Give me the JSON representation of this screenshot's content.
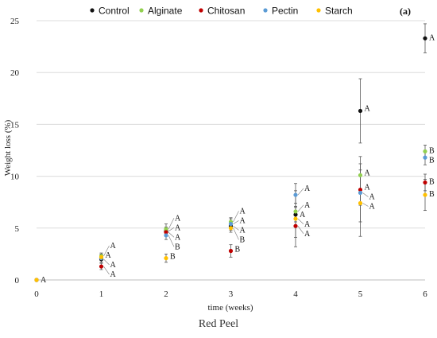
{
  "caption": "Red Peel",
  "chart_data": {
    "type": "scatter",
    "panel_label": "(a)",
    "xlabel": "time (weeks)",
    "ylabel": "Weight loss (%)",
    "xlim": [
      0,
      6
    ],
    "ylim": [
      0,
      25
    ],
    "x_ticks": [
      0,
      1,
      2,
      3,
      4,
      5,
      6
    ],
    "y_ticks": [
      0,
      5,
      10,
      15,
      20,
      25
    ],
    "grid": "horizontal",
    "legend_position": "top",
    "series": [
      {
        "name": "Control",
        "color": "#111111",
        "points": [
          {
            "x": 0,
            "y": 0,
            "err": 0,
            "label": "A"
          },
          {
            "x": 1,
            "y": 2.0,
            "err": 0.3,
            "label": "A"
          },
          {
            "x": 2,
            "y": 4.7,
            "err": 0.4,
            "label": "A"
          },
          {
            "x": 3,
            "y": 5.2,
            "err": 0.4,
            "label": "A"
          },
          {
            "x": 4,
            "y": 6.3,
            "err": 0.7,
            "label": "A"
          },
          {
            "x": 5,
            "y": 16.3,
            "err": 3.1,
            "label": "A"
          },
          {
            "x": 6,
            "y": 23.3,
            "err": 1.4,
            "label": "A"
          }
        ]
      },
      {
        "name": "Alginate",
        "color": "#92d050",
        "points": [
          {
            "x": 0,
            "y": 0,
            "err": 0
          },
          {
            "x": 1,
            "y": 2.3,
            "err": 0.3,
            "label": "A"
          },
          {
            "x": 2,
            "y": 4.9,
            "err": 0.5,
            "label": "A"
          },
          {
            "x": 3,
            "y": 5.6,
            "err": 0.4,
            "label": "A"
          },
          {
            "x": 4,
            "y": 6.6,
            "err": 0.8,
            "label": "A"
          },
          {
            "x": 5,
            "y": 10.1,
            "err": 1.8,
            "label": "A"
          },
          {
            "x": 6,
            "y": 12.4,
            "err": 0.6,
            "label": "B"
          }
        ]
      },
      {
        "name": "Chitosan",
        "color": "#c00000",
        "points": [
          {
            "x": 0,
            "y": 0,
            "err": 0
          },
          {
            "x": 1,
            "y": 1.3,
            "err": 0.3,
            "label": "A"
          },
          {
            "x": 2,
            "y": 4.6,
            "err": 0.4,
            "label": "A"
          },
          {
            "x": 3,
            "y": 2.8,
            "err": 0.6,
            "label": "B"
          },
          {
            "x": 4,
            "y": 5.2,
            "err": 1.1,
            "label": "A"
          },
          {
            "x": 5,
            "y": 8.7,
            "err": 1.5,
            "label": "A"
          },
          {
            "x": 6,
            "y": 9.4,
            "err": 0.8,
            "label": "B"
          }
        ]
      },
      {
        "name": "Pectin",
        "color": "#5b9bd5",
        "points": [
          {
            "x": 0,
            "y": 0,
            "err": 0
          },
          {
            "x": 1,
            "y": 2.1,
            "err": 0.4,
            "label": "A"
          },
          {
            "x": 2,
            "y": 4.3,
            "err": 0.4,
            "label": "B"
          },
          {
            "x": 3,
            "y": 5.4,
            "err": 0.5,
            "label": "A"
          },
          {
            "x": 4,
            "y": 8.2,
            "err": 1.1,
            "label": "A"
          },
          {
            "x": 5,
            "y": 8.4,
            "err": 2.8,
            "label": "A"
          },
          {
            "x": 6,
            "y": 11.8,
            "err": 0.7,
            "label": "B"
          }
        ]
      },
      {
        "name": "Starch",
        "color": "#ffc000",
        "points": [
          {
            "x": 0,
            "y": 0,
            "err": 0
          },
          {
            "x": 1,
            "y": 2.2,
            "err": 0.3
          },
          {
            "x": 2,
            "y": 2.1,
            "err": 0.4,
            "label": "B"
          },
          {
            "x": 3,
            "y": 5.0,
            "err": 0.4,
            "label": "B"
          },
          {
            "x": 4,
            "y": 5.9,
            "err": 2.7,
            "label": "A"
          },
          {
            "x": 5,
            "y": 7.4,
            "err": 3.2,
            "label": "A"
          },
          {
            "x": 6,
            "y": 8.2,
            "err": 1.5,
            "label": "B"
          }
        ]
      }
    ]
  }
}
